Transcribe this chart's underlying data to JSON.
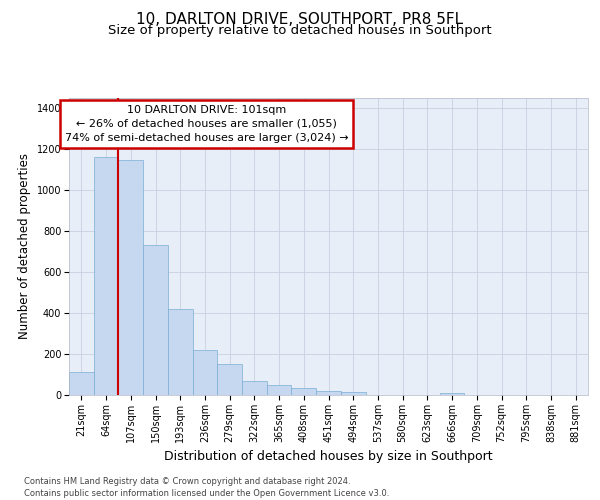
{
  "title": "10, DARLTON DRIVE, SOUTHPORT, PR8 5FL",
  "subtitle": "Size of property relative to detached houses in Southport",
  "xlabel": "Distribution of detached houses by size in Southport",
  "ylabel": "Number of detached properties",
  "categories": [
    "21sqm",
    "64sqm",
    "107sqm",
    "150sqm",
    "193sqm",
    "236sqm",
    "279sqm",
    "322sqm",
    "365sqm",
    "408sqm",
    "451sqm",
    "494sqm",
    "537sqm",
    "580sqm",
    "623sqm",
    "666sqm",
    "709sqm",
    "752sqm",
    "795sqm",
    "838sqm",
    "881sqm"
  ],
  "bar_values": [
    110,
    1160,
    1145,
    730,
    420,
    220,
    150,
    70,
    50,
    35,
    20,
    15,
    0,
    0,
    0,
    10,
    0,
    0,
    0,
    0,
    0
  ],
  "ylim": [
    0,
    1450
  ],
  "yticks": [
    0,
    200,
    400,
    600,
    800,
    1000,
    1200,
    1400
  ],
  "property_line_x": 1.5,
  "annotation_text": "10 DARLTON DRIVE: 101sqm\n← 26% of detached houses are smaller (1,055)\n74% of semi-detached houses are larger (3,024) →",
  "bar_color": "#c5d8ef",
  "bar_edge_color": "#7aadd4",
  "line_color": "#cc0000",
  "annotation_box_edge": "#cc0000",
  "plot_bg": "#e8eef8",
  "grid_color": "#c8d0e0",
  "footer_text": "Contains HM Land Registry data © Crown copyright and database right 2024.\nContains public sector information licensed under the Open Government Licence v3.0.",
  "title_fontsize": 11,
  "subtitle_fontsize": 9.5,
  "ylabel_fontsize": 8.5,
  "xlabel_fontsize": 9,
  "tick_fontsize": 7,
  "annotation_fontsize": 8,
  "footer_fontsize": 6
}
